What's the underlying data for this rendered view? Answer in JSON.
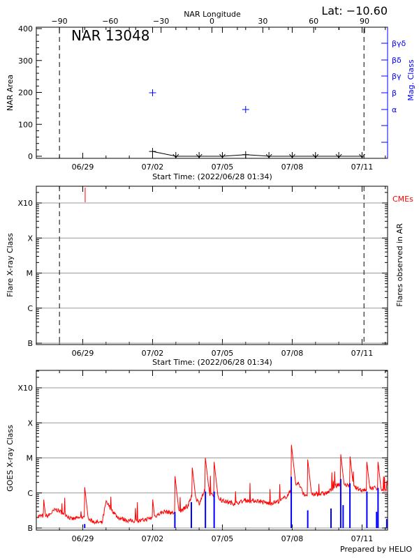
{
  "chart_data": [
    {
      "type": "scatter",
      "title": "NAR 13048",
      "latitude_label": "Lat: −10.60",
      "top_xlabel": "NAR Longitude",
      "top_xticks": [
        "−90",
        "−60",
        "−30",
        "0",
        "30",
        "60",
        "90"
      ],
      "xlabel": "Start Time: (2022/06/28 01:34)",
      "xticks": [
        "06/29",
        "07/02",
        "07/05",
        "07/08",
        "07/11"
      ],
      "ylabel": "NAR Area",
      "yticks": [
        "0",
        "100",
        "200",
        "300",
        "400"
      ],
      "ylim": [
        0,
        400
      ],
      "y2label": "Mag. Class",
      "y2ticks": [
        "α",
        "β",
        "βγ",
        "βδ",
        "βγδ"
      ],
      "colors": {
        "area": "#000000",
        "mag_class": "#0000ff",
        "limb_lines": "#000000"
      },
      "limb_dates": [
        "06/29 00:00",
        "07/12 02:00"
      ],
      "area_series": {
        "x": [
          "07/03 00:00",
          "07/04 00:00",
          "07/05 00:00",
          "07/06 00:00",
          "07/07 00:00",
          "07/08 00:00",
          "07/09 00:00",
          "07/10 00:00",
          "07/11 00:00",
          "07/12 00:00"
        ],
        "y": [
          15,
          0,
          0,
          0,
          5,
          0,
          0,
          0,
          0,
          0
        ]
      },
      "mag_class_series": {
        "x": [
          "07/03 00:00",
          "07/07 00:00"
        ],
        "y": [
          "β",
          "α"
        ]
      }
    },
    {
      "type": "scatter",
      "xlabel": "Start Time: (2022/06/28 01:34)",
      "xticks": [
        "06/29",
        "07/02",
        "07/05",
        "07/08",
        "07/11"
      ],
      "ylabel": "Flare X-ray Class",
      "yticks": [
        "B",
        "C",
        "M",
        "X",
        "X10"
      ],
      "y2label": "Flares observed in AR",
      "grid": true,
      "cme_label": "CMEs",
      "cme_color": "#ff0000",
      "cmes": [
        "06/30 02:30"
      ],
      "flares": []
    },
    {
      "type": "line",
      "ylabel": "GOES X-ray Class",
      "yticks": [
        "B",
        "C",
        "M",
        "X",
        "X10"
      ],
      "yscale": "log",
      "ylim_flux": [
        1e-07,
        0.001
      ],
      "xticks": [
        "06/29",
        "07/02",
        "07/05",
        "07/08",
        "07/11"
      ],
      "grid": true,
      "footer": "Prepared by HELIO",
      "colors": {
        "goes": "#ff0000",
        "flares": "#0000ff"
      },
      "goes_baseline": {
        "x": [
          "06/28 02:00",
          "06/28 12:00",
          "06/28 20:00",
          "06/29 06:00",
          "06/29 12:00",
          "06/30 00:00",
          "06/30 12:00",
          "06/30 20:00",
          "07/01 00:00",
          "07/01 12:00",
          "07/02 00:00",
          "07/02 12:00",
          "07/03 00:00",
          "07/03 12:00",
          "07/04 00:00",
          "07/04 12:00",
          "07/04 18:00",
          "07/05 00:00",
          "07/05 06:00",
          "07/05 12:00",
          "07/06 00:00",
          "07/06 12:00",
          "07/07 00:00",
          "07/07 12:00",
          "07/08 00:00",
          "07/08 12:00",
          "07/08 18:00",
          "07/09 06:00",
          "07/09 12:00",
          "07/10 00:00",
          "07/10 12:00",
          "07/11 00:00",
          "07/11 12:00",
          "07/12 00:00",
          "07/12 12:00",
          "07/13 00:00",
          "07/13 12:00"
        ],
        "y": [
          2.2e-07,
          2.2e-07,
          3.4e-07,
          2.5e-07,
          1.8e-07,
          2e-07,
          1.5e-07,
          1.4e-07,
          5.5e-07,
          2e-07,
          1.6e-07,
          1.6e-07,
          2e-07,
          3e-07,
          2.6e-07,
          4e-07,
          1e-06,
          5e-07,
          1.2e-06,
          9e-07,
          6e-07,
          5e-07,
          6e-07,
          6e-07,
          5e-07,
          6e-07,
          8e-07,
          2e-06,
          9e-07,
          9e-07,
          1e-06,
          1.8e-06,
          1.6e-06,
          1.2e-06,
          1.4e-06,
          1.2e-06,
          1.2e-06
        ]
      },
      "goes_peaks": {
        "x": [
          "06/28 07:40",
          "06/30 02:00",
          "07/03 00:00",
          "07/03 23:00",
          "07/04 17:00",
          "07/05 06:30",
          "07/05 15:30",
          "07/08 23:00",
          "07/09 16:00",
          "07/11 02:00",
          "07/11 11:30",
          "07/12 05:00",
          "07/12 16:30",
          "07/13 01:30"
        ],
        "y": [
          7e-07,
          1.5e-06,
          7e-07,
          3.3e-06,
          5.3e-06,
          1e-05,
          7.7e-06,
          2.6e-05,
          9e-06,
          1.3e-05,
          1.2e-05,
          7.7e-06,
          7.7e-06,
          2.3e-06
        ]
      },
      "flare_bars": {
        "x": [
          "06/30 02:00",
          "07/03 23:00",
          "07/04 16:00",
          "07/05 06:30",
          "07/05 15:30",
          "07/08 23:00",
          "07/09 16:00",
          "07/10 16:00",
          "07/11 02:00",
          "07/11 04:30",
          "07/11 11:30",
          "07/12 05:00",
          "07/12 15:00",
          "07/12 16:30",
          "07/13 01:30"
        ],
        "y": [
          1.3e-07,
          2.9e-07,
          5.5e-07,
          1.1e-06,
          1.1e-06,
          2.9e-06,
          3.2e-07,
          3.6e-07,
          2.5e-06,
          4.5e-07,
          1.9e-06,
          1.1e-06,
          2.9e-07,
          1.4e-06,
          1.8e-07
        ]
      }
    }
  ]
}
